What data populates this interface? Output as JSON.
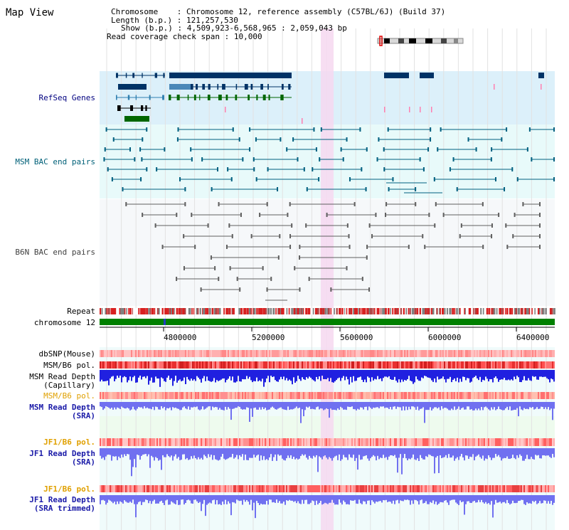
{
  "view": {
    "title": "Map View"
  },
  "info": {
    "chromosome_key": "Chromosome",
    "chromosome_val": "Chromosome 12, reference assembly (C57BL/6J) (Build 37)",
    "length_key": "Length (b.p.)",
    "length_val": "121,257,530",
    "show_key": "Show (b.p.)",
    "show_val": "4,509,923-6,568,965 : 2,059,043 bp",
    "coverage_key": "Read coverage check span",
    "coverage_val": "10,000"
  },
  "tracks": {
    "refseq": "RefSeq Genes",
    "msm_bac": "MSM BAC end pairs",
    "b6n_bac": "B6N BAC end pairs",
    "repeat": "Repeat",
    "chromosome": "chromosome 12",
    "dbsnp": "dbSNP(Mouse)",
    "msm_b6_pol_1": "MSM/B6 pol.",
    "msm_read_depth_cap_1": "MSM Read Depth",
    "msm_read_depth_cap_2": "(Capillary)",
    "msm_b6_pol_2": "MSM/B6 pol.",
    "msm_read_depth_sra_1": "MSM Read Depth",
    "msm_read_depth_sra_2": "(SRA)",
    "jf1_b6_pol_1": "JF1/B6 pol.",
    "jf1_read_depth_sra_1": "JF1 Read Depth",
    "jf1_read_depth_sra_2": "(SRA)",
    "jf1_b6_pol_2": "JF1/B6 pol.",
    "jf1_read_depth_trim_1": "JF1 Read Depth",
    "jf1_read_depth_trim_2": "(SRA trimmed)"
  },
  "axis": {
    "ticks": [
      "4800000",
      "5200000",
      "5600000",
      "6000000",
      "6400000"
    ]
  },
  "colors": {
    "refseq_bg": "#dcf0fa",
    "bac_bg": "#e8fafa",
    "highlight": "#f6d8f0",
    "navy_gene": "#003366",
    "green_gene": "#006600",
    "teal_line": "#006080",
    "gray_line": "#606060",
    "chrom_green": "#008000",
    "depth_blue": "#2020e0",
    "sra_blue": "#7070f0"
  }
}
